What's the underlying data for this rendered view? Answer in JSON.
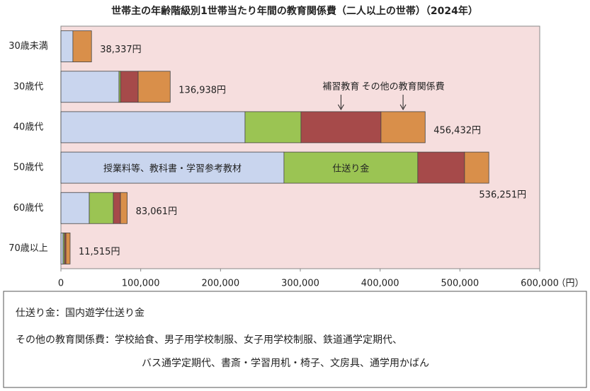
{
  "chart_data": {
    "type": "stacked-bar-horizontal",
    "title": "世帯主の年齢階級別1世帯当たり年間の教育関係費（二人以上の世帯）（2024年）",
    "categories": [
      "30歳未満",
      "30歳代",
      "40歳代",
      "50歳代",
      "60歳代",
      "70歳以上"
    ],
    "series": [
      {
        "name": "授業料等、教科書・学習参考教材",
        "color": "#c9d5ee",
        "values": [
          15000,
          72800,
          230700,
          279500,
          35500,
          2700
        ]
      },
      {
        "name": "仕送り金",
        "color": "#9bc453",
        "values": [
          0,
          2000,
          70100,
          167700,
          30200,
          1800
        ]
      },
      {
        "name": "補習教育",
        "color": "#a64a4a",
        "values": [
          0,
          22000,
          100300,
          58600,
          8900,
          1800
        ]
      },
      {
        "name": "その他の教育関係費",
        "color": "#d98f4a",
        "values": [
          23337,
          40138,
          55332,
          30451,
          8461,
          5215
        ]
      }
    ],
    "totals": {
      "values": [
        38337,
        136938,
        456432,
        536251,
        83061,
        11515
      ],
      "value_labels": [
        "38,337円",
        "136,938円",
        "456,432円",
        "536,251円",
        "83,061円",
        "11,515円"
      ]
    },
    "xlim": [
      0,
      600000
    ],
    "xticks": [
      0,
      {
        "value": 100000,
        "label": "100,000"
      },
      {
        "value": 200000,
        "label": "200,000"
      },
      {
        "value": 300000,
        "label": "300,000"
      },
      {
        "value": 400000,
        "label": "400,000"
      },
      {
        "value": 500000,
        "label": "500,000"
      },
      {
        "value": 600000,
        "label": "600,000"
      }
    ],
    "x_label": "（円）"
  },
  "notes": [
    "仕送り金：国内遊学仕送り金",
    "その他の教育関係費：学校給食、男子用学校制服、女子用学校制服、鉄道通学定期代、",
    "バス通学定期代、書斎・学習用机・椅子、文房具、通学用かばん"
  ]
}
